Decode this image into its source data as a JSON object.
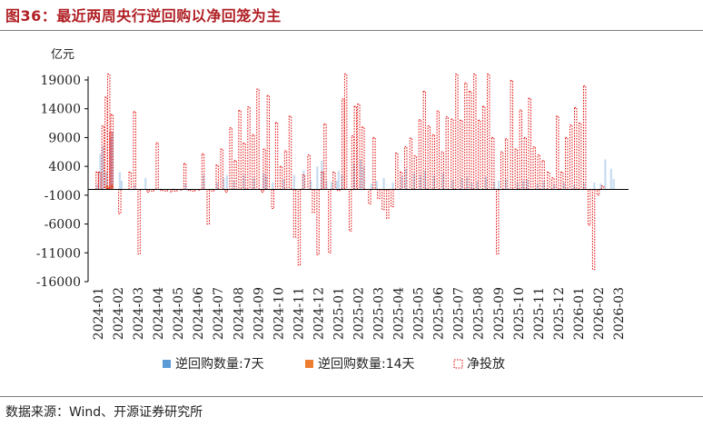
{
  "header": {
    "title": "图36：最近两周央行逆回购以净回笼为主"
  },
  "footer": {
    "source": "数据来源：Wind、开源证券研究所"
  },
  "colors": {
    "title": "#b01f24",
    "repo7": "#5b9bd5",
    "repo14": "#ed7d31",
    "net": "#e00000",
    "axis": "#000000"
  },
  "chart_data": {
    "type": "bar",
    "unit": "亿元",
    "ylim": [
      -16000,
      19000
    ],
    "yticks": [
      19000,
      14000,
      9000,
      4000,
      -1000,
      -6000,
      -11000,
      -16000
    ],
    "x_months": [
      "2024-01",
      "2024-02",
      "2024-03",
      "2024-04",
      "2024-05",
      "2024-06",
      "2024-07",
      "2024-08",
      "2024-09",
      "2024-10",
      "2024-11",
      "2024-12",
      "2025-01",
      "2025-02",
      "2025-03",
      "2025-04",
      "2025-05",
      "2025-06",
      "2025-07",
      "2025-08",
      "2025-09",
      "2025-10",
      "2025-11",
      "2025-12",
      "2026-01",
      "2026-02",
      "2026-03"
    ],
    "grid": false,
    "legend_position": "bottom",
    "series": [
      {
        "name": "逆回购数量:7天",
        "color": "#5b9bd5",
        "points": [
          {
            "date": "2024-01-15",
            "value": 800
          },
          {
            "date": "2024-01-20",
            "value": 6200
          },
          {
            "date": "2024-01-24",
            "value": 7500
          },
          {
            "date": "2024-01-29",
            "value": 3000
          },
          {
            "date": "2024-02-05",
            "value": 9000
          },
          {
            "date": "2024-02-08",
            "value": 10000
          },
          {
            "date": "2024-02-19",
            "value": 3000
          },
          {
            "date": "2024-02-22",
            "value": 1500
          },
          {
            "date": "2024-03-11",
            "value": 800
          },
          {
            "date": "2024-03-28",
            "value": 2000
          },
          {
            "date": "2024-04-20",
            "value": 200
          },
          {
            "date": "2024-05-10",
            "value": 200
          },
          {
            "date": "2024-05-28",
            "value": 1000
          },
          {
            "date": "2024-06-25",
            "value": 2500
          },
          {
            "date": "2024-07-15",
            "value": 1200
          },
          {
            "date": "2024-07-25",
            "value": 2000
          },
          {
            "date": "2024-07-30",
            "value": 2500
          },
          {
            "date": "2024-08-10",
            "value": 1500
          },
          {
            "date": "2024-08-25",
            "value": 2500
          },
          {
            "date": "2024-09-10",
            "value": 2000
          },
          {
            "date": "2024-09-25",
            "value": 2800
          },
          {
            "date": "2024-09-29",
            "value": 2300
          },
          {
            "date": "2024-10-08",
            "value": 1200
          },
          {
            "date": "2024-10-25",
            "value": 1800
          },
          {
            "date": "2024-11-10",
            "value": 2500
          },
          {
            "date": "2024-11-25",
            "value": 3300
          },
          {
            "date": "2024-12-05",
            "value": 1500
          },
          {
            "date": "2024-12-15",
            "value": 4000
          },
          {
            "date": "2024-12-22",
            "value": 5000
          },
          {
            "date": "2024-12-29",
            "value": 1500
          },
          {
            "date": "2025-01-06",
            "value": 1300
          },
          {
            "date": "2025-01-14",
            "value": 1500
          },
          {
            "date": "2025-01-17",
            "value": 3200
          },
          {
            "date": "2025-01-22",
            "value": 2500
          },
          {
            "date": "2025-02-10",
            "value": 4500
          },
          {
            "date": "2025-02-20",
            "value": 5200
          },
          {
            "date": "2025-02-25",
            "value": 4000
          },
          {
            "date": "2025-03-06",
            "value": 1000
          },
          {
            "date": "2025-03-14",
            "value": 1500
          },
          {
            "date": "2025-03-25",
            "value": 2000
          },
          {
            "date": "2025-04-08",
            "value": 1200
          },
          {
            "date": "2025-04-22",
            "value": 2300
          },
          {
            "date": "2025-04-28",
            "value": 3600
          },
          {
            "date": "2025-05-10",
            "value": 2800
          },
          {
            "date": "2025-05-20",
            "value": 2500
          },
          {
            "date": "2025-05-27",
            "value": 3300
          },
          {
            "date": "2025-06-10",
            "value": 2400
          },
          {
            "date": "2025-06-24",
            "value": 2800
          },
          {
            "date": "2025-07-08",
            "value": 1600
          },
          {
            "date": "2025-07-22",
            "value": 2000
          },
          {
            "date": "2025-07-30",
            "value": 2200
          },
          {
            "date": "2025-08-06",
            "value": 1200
          },
          {
            "date": "2025-08-15",
            "value": 1400
          },
          {
            "date": "2025-08-28",
            "value": 2200
          },
          {
            "date": "2025-09-10",
            "value": 1300
          },
          {
            "date": "2025-09-17",
            "value": 1500
          },
          {
            "date": "2025-09-28",
            "value": 1800
          },
          {
            "date": "2025-10-15",
            "value": 1200
          },
          {
            "date": "2025-10-24",
            "value": 1500
          },
          {
            "date": "2025-10-30",
            "value": 1800
          },
          {
            "date": "2025-11-15",
            "value": 1000
          },
          {
            "date": "2025-11-25",
            "value": 1400
          },
          {
            "date": "2025-12-10",
            "value": 900
          },
          {
            "date": "2025-12-25",
            "value": 1200
          },
          {
            "date": "2026-01-10",
            "value": 800
          },
          {
            "date": "2026-01-25",
            "value": 1100
          },
          {
            "date": "2026-02-10",
            "value": 1200
          },
          {
            "date": "2026-02-20",
            "value": 1000
          },
          {
            "date": "2026-02-27",
            "value": 5200
          },
          {
            "date": "2026-03-05",
            "value": 3600
          },
          {
            "date": "2026-03-09",
            "value": 1800
          }
        ]
      },
      {
        "name": "逆回购数量:14天",
        "color": "#ed7d31",
        "points": [
          {
            "date": "2024-02-02",
            "value": 500
          },
          {
            "date": "2024-02-07",
            "value": 800
          },
          {
            "date": "2024-01-30",
            "value": 700
          }
        ]
      },
      {
        "name": "净投放",
        "color": "#e00000",
        "points": [
          {
            "date": "2024-01-15",
            "value": 3000
          },
          {
            "date": "2024-01-19",
            "value": 3000
          },
          {
            "date": "2024-01-24",
            "value": 11000
          },
          {
            "date": "2024-01-29",
            "value": 16000
          },
          {
            "date": "2024-02-02",
            "value": 20000
          },
          {
            "date": "2024-02-05",
            "value": 10000
          },
          {
            "date": "2024-02-07",
            "value": 13000
          },
          {
            "date": "2024-02-19",
            "value": -4200
          },
          {
            "date": "2024-03-04",
            "value": 3000
          },
          {
            "date": "2024-03-11",
            "value": 13500
          },
          {
            "date": "2024-03-18",
            "value": -11200
          },
          {
            "date": "2024-04-01",
            "value": -500
          },
          {
            "date": "2024-04-08",
            "value": -300
          },
          {
            "date": "2024-04-15",
            "value": 8100
          },
          {
            "date": "2024-04-22",
            "value": -200
          },
          {
            "date": "2024-04-29",
            "value": -300
          },
          {
            "date": "2024-05-06",
            "value": -400
          },
          {
            "date": "2024-05-13",
            "value": -300
          },
          {
            "date": "2024-05-20",
            "value": -100
          },
          {
            "date": "2024-05-27",
            "value": 4500
          },
          {
            "date": "2024-06-03",
            "value": -200
          },
          {
            "date": "2024-06-10",
            "value": -300
          },
          {
            "date": "2024-06-17",
            "value": -100
          },
          {
            "date": "2024-06-24",
            "value": 6200
          },
          {
            "date": "2024-07-01",
            "value": -6000
          },
          {
            "date": "2024-07-08",
            "value": -300
          },
          {
            "date": "2024-07-15",
            "value": 4200
          },
          {
            "date": "2024-07-22",
            "value": 7000
          },
          {
            "date": "2024-07-29",
            "value": -500
          },
          {
            "date": "2024-08-05",
            "value": 10700
          },
          {
            "date": "2024-08-12",
            "value": 5000
          },
          {
            "date": "2024-08-19",
            "value": 13700
          },
          {
            "date": "2024-08-26",
            "value": 8000
          },
          {
            "date": "2024-09-02",
            "value": 14300
          },
          {
            "date": "2024-09-09",
            "value": 9500
          },
          {
            "date": "2024-09-16",
            "value": 17400
          },
          {
            "date": "2024-09-23",
            "value": -500
          },
          {
            "date": "2024-09-26",
            "value": 7000
          },
          {
            "date": "2024-10-01",
            "value": 16300
          },
          {
            "date": "2024-10-08",
            "value": -3300
          },
          {
            "date": "2024-10-14",
            "value": 11600
          },
          {
            "date": "2024-10-21",
            "value": 4000
          },
          {
            "date": "2024-10-28",
            "value": 6700
          },
          {
            "date": "2024-11-04",
            "value": 12700
          },
          {
            "date": "2024-11-11",
            "value": -8300
          },
          {
            "date": "2024-11-18",
            "value": -13100
          },
          {
            "date": "2024-11-25",
            "value": 2500
          },
          {
            "date": "2024-12-02",
            "value": 6000
          },
          {
            "date": "2024-12-09",
            "value": -4000
          },
          {
            "date": "2024-12-16",
            "value": -11300
          },
          {
            "date": "2024-12-23",
            "value": 3000
          },
          {
            "date": "2024-12-27",
            "value": 11400
          },
          {
            "date": "2025-01-03",
            "value": -11000
          },
          {
            "date": "2025-01-10",
            "value": 3000
          },
          {
            "date": "2025-01-17",
            "value": -200
          },
          {
            "date": "2025-01-24",
            "value": 15700
          },
          {
            "date": "2025-01-28",
            "value": 20000
          },
          {
            "date": "2025-02-04",
            "value": -7200
          },
          {
            "date": "2025-02-08",
            "value": 9300
          },
          {
            "date": "2025-02-12",
            "value": 14400
          },
          {
            "date": "2025-02-17",
            "value": 14800
          },
          {
            "date": "2025-02-24",
            "value": 10800
          },
          {
            "date": "2025-03-03",
            "value": -2500
          },
          {
            "date": "2025-03-10",
            "value": 9000
          },
          {
            "date": "2025-03-17",
            "value": -1600
          },
          {
            "date": "2025-03-24",
            "value": -3500
          },
          {
            "date": "2025-03-31",
            "value": -5000
          },
          {
            "date": "2025-04-07",
            "value": -3000
          },
          {
            "date": "2025-04-14",
            "value": 6300
          },
          {
            "date": "2025-04-21",
            "value": 3000
          },
          {
            "date": "2025-04-28",
            "value": 7400
          },
          {
            "date": "2025-05-05",
            "value": 8900
          },
          {
            "date": "2025-05-12",
            "value": 5800
          },
          {
            "date": "2025-05-19",
            "value": 12100
          },
          {
            "date": "2025-05-26",
            "value": 17000
          },
          {
            "date": "2025-06-02",
            "value": 11000
          },
          {
            "date": "2025-06-09",
            "value": 9500
          },
          {
            "date": "2025-06-16",
            "value": 13600
          },
          {
            "date": "2025-06-23",
            "value": 6500
          },
          {
            "date": "2025-06-30",
            "value": 12600
          },
          {
            "date": "2025-07-07",
            "value": 12200
          },
          {
            "date": "2025-07-14",
            "value": 20000
          },
          {
            "date": "2025-07-21",
            "value": 12000
          },
          {
            "date": "2025-07-28",
            "value": 18500
          },
          {
            "date": "2025-08-04",
            "value": 17000
          },
          {
            "date": "2025-08-11",
            "value": 20000
          },
          {
            "date": "2025-08-18",
            "value": 12000
          },
          {
            "date": "2025-08-25",
            "value": 14400
          },
          {
            "date": "2025-09-01",
            "value": 20000
          },
          {
            "date": "2025-09-08",
            "value": 9000
          },
          {
            "date": "2025-09-15",
            "value": -11200
          },
          {
            "date": "2025-09-22",
            "value": 6500
          },
          {
            "date": "2025-09-29",
            "value": 8800
          },
          {
            "date": "2025-10-06",
            "value": 18900
          },
          {
            "date": "2025-10-13",
            "value": 7000
          },
          {
            "date": "2025-10-20",
            "value": 13800
          },
          {
            "date": "2025-10-27",
            "value": 9000
          },
          {
            "date": "2025-11-03",
            "value": 15800
          },
          {
            "date": "2025-11-10",
            "value": 7400
          },
          {
            "date": "2025-11-17",
            "value": 6000
          },
          {
            "date": "2025-11-24",
            "value": 5000
          },
          {
            "date": "2025-12-01",
            "value": 3000
          },
          {
            "date": "2025-12-08",
            "value": 2000
          },
          {
            "date": "2025-12-15",
            "value": 12700
          },
          {
            "date": "2025-12-22",
            "value": 3000
          },
          {
            "date": "2025-12-29",
            "value": 9000
          },
          {
            "date": "2026-01-05",
            "value": 11200
          },
          {
            "date": "2026-01-12",
            "value": 14200
          },
          {
            "date": "2026-01-19",
            "value": 11500
          },
          {
            "date": "2026-01-26",
            "value": 18000
          },
          {
            "date": "2026-02-02",
            "value": -6200
          },
          {
            "date": "2026-02-09",
            "value": -13900
          },
          {
            "date": "2026-02-16",
            "value": -1000
          },
          {
            "date": "2026-02-23",
            "value": 600
          }
        ]
      }
    ]
  }
}
